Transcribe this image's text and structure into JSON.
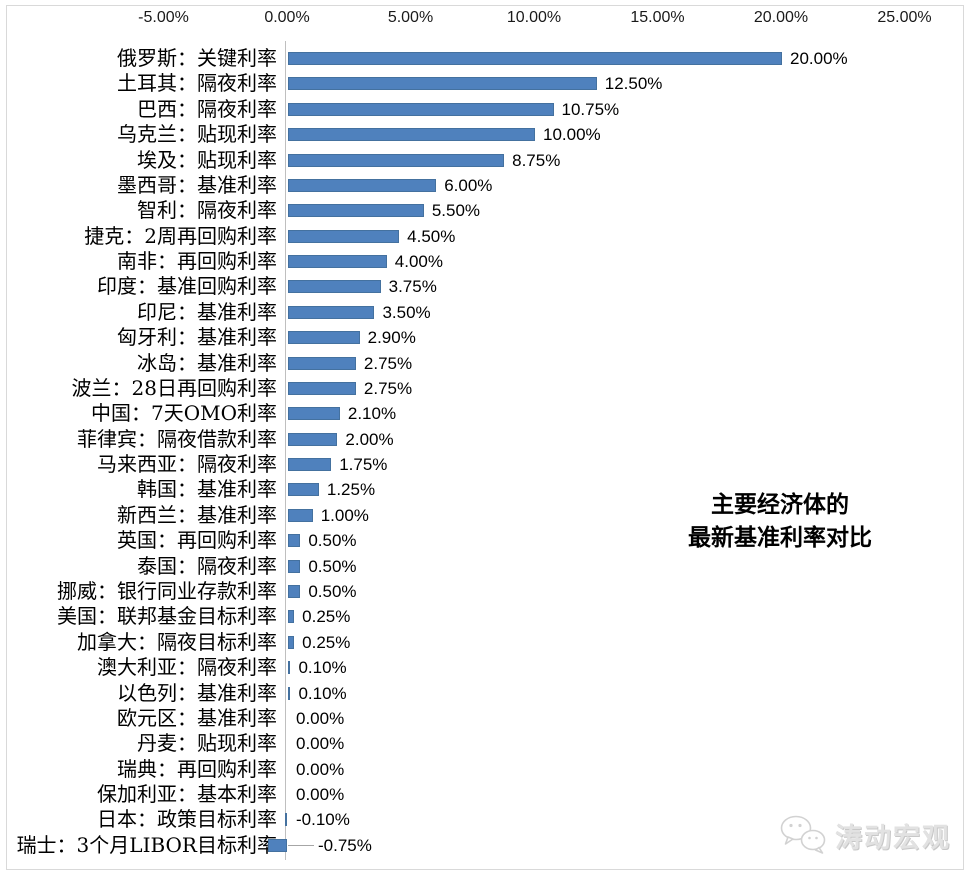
{
  "page": {
    "background": "#ffffff",
    "frame_border_color": "#d9d9d9"
  },
  "watermark": {
    "text": "涛动宏观",
    "icon": "wechat-icon",
    "color": "#e2e2e2"
  },
  "chart_data": {
    "type": "bar",
    "orientation": "horizontal",
    "title": "主要经济体的最新基准利率对比",
    "title_lines": [
      "主要经济体的",
      "最新基准利率对比"
    ],
    "xlabel": "",
    "ylabel": "",
    "grid": false,
    "legend": false,
    "bar_color": "#4F81BD",
    "bar_border_color": "#44719F",
    "axis_line_color": "#bfbfbf",
    "leader_line_color": "#a6a6a6",
    "x_axis": {
      "position": "top",
      "range": [
        -5,
        25
      ],
      "ticks": [
        "-5.00%",
        "0.00%",
        "5.00%",
        "10.00%",
        "15.00%",
        "20.00%",
        "25.00%"
      ],
      "tick_values": [
        -5,
        0,
        5,
        10,
        15,
        20,
        25
      ]
    },
    "items": [
      {
        "category": "俄罗斯：关键利率",
        "value": 20.0,
        "label": "20.00%"
      },
      {
        "category": "土耳其：隔夜利率",
        "value": 12.5,
        "label": "12.50%"
      },
      {
        "category": "巴西：隔夜利率",
        "value": 10.75,
        "label": "10.75%"
      },
      {
        "category": "乌克兰：贴现利率",
        "value": 10.0,
        "label": "10.00%"
      },
      {
        "category": "埃及：贴现利率",
        "value": 8.75,
        "label": "8.75%"
      },
      {
        "category": "墨西哥：基准利率",
        "value": 6.0,
        "label": "6.00%"
      },
      {
        "category": "智利：隔夜利率",
        "value": 5.5,
        "label": "5.50%"
      },
      {
        "category": "捷克：2周再回购利率",
        "value": 4.5,
        "label": "4.50%"
      },
      {
        "category": "南非：再回购利率",
        "value": 4.0,
        "label": "4.00%"
      },
      {
        "category": "印度：基准回购利率",
        "value": 3.75,
        "label": "3.75%"
      },
      {
        "category": "印尼：基准利率",
        "value": 3.5,
        "label": "3.50%"
      },
      {
        "category": "匈牙利：基准利率",
        "value": 2.9,
        "label": "2.90%"
      },
      {
        "category": "冰岛：基准利率",
        "value": 2.75,
        "label": "2.75%"
      },
      {
        "category": "波兰：28日再回购利率",
        "value": 2.75,
        "label": "2.75%"
      },
      {
        "category": "中国：7天OMO利率",
        "value": 2.1,
        "label": "2.10%"
      },
      {
        "category": "菲律宾：隔夜借款利率",
        "value": 2.0,
        "label": "2.00%"
      },
      {
        "category": "马来西亚：隔夜利率",
        "value": 1.75,
        "label": "1.75%"
      },
      {
        "category": "韩国：基准利率",
        "value": 1.25,
        "label": "1.25%"
      },
      {
        "category": "新西兰：基准利率",
        "value": 1.0,
        "label": "1.00%"
      },
      {
        "category": "英国：再回购利率",
        "value": 0.5,
        "label": "0.50%"
      },
      {
        "category": "泰国：隔夜利率",
        "value": 0.5,
        "label": "0.50%"
      },
      {
        "category": "挪威：银行同业存款利率",
        "value": 0.5,
        "label": "0.50%"
      },
      {
        "category": "美国：联邦基金目标利率",
        "value": 0.25,
        "label": "0.25%"
      },
      {
        "category": "加拿大：隔夜目标利率",
        "value": 0.25,
        "label": "0.25%"
      },
      {
        "category": "澳大利亚：隔夜利率",
        "value": 0.1,
        "label": "0.10%"
      },
      {
        "category": "以色列：基准利率",
        "value": 0.1,
        "label": "0.10%"
      },
      {
        "category": "欧元区：基准利率",
        "value": 0.0,
        "label": "0.00%"
      },
      {
        "category": "丹麦：贴现利率",
        "value": 0.0,
        "label": "0.00%"
      },
      {
        "category": "瑞典：再回购利率",
        "value": 0.0,
        "label": "0.00%"
      },
      {
        "category": "保加利亚：基本利率",
        "value": 0.0,
        "label": "0.00%"
      },
      {
        "category": "日本：政策目标利率",
        "value": -0.1,
        "label": "-0.10%"
      },
      {
        "category": "瑞士：3个月LIBOR目标利率",
        "value": -0.75,
        "label": "-0.75%",
        "leader_line": true,
        "label_offset": 22
      }
    ]
  }
}
